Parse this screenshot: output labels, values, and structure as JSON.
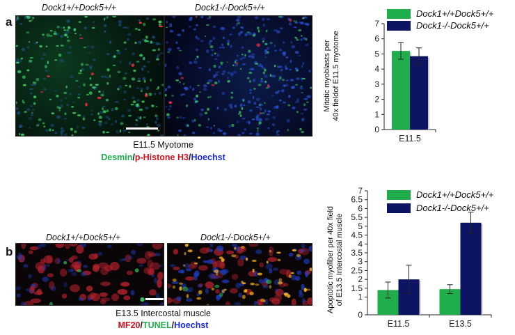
{
  "colors": {
    "green": "#1fae4b",
    "navy": "#0c1463",
    "desmin": "#1fae4b",
    "red": "#d0101c",
    "blue": "#1a2bd6"
  },
  "panel_a": {
    "letter": "a",
    "genotype_left": "Dock1+/+Dock5+/+",
    "genotype_right": "Dock1-/-Dock5+/+",
    "caption": "E11.5 Myotome",
    "stain": {
      "part1": "Desmin",
      "sep1": "/",
      "part2": "p-Histone H3",
      "sep2": "/",
      "part3": "Hoechst"
    }
  },
  "panel_b": {
    "letter": "b",
    "genotype_left": "Dock1+/+Dock5+/+",
    "genotype_right": "Dock1-/-Dock5+/+",
    "caption": "E13.5 Intercostal muscle",
    "stain": {
      "part1": "MF20",
      "sep1": "/",
      "part2": "TUNEL",
      "sep2": "/",
      "part3": "Hoechst"
    }
  },
  "chart_data": [
    {
      "type": "bar",
      "ylabel_line1": "Mitotic myoblasts per",
      "ylabel_line2": "40x fieldof E11.5 myotome",
      "categories": [
        "E11.5"
      ],
      "series": [
        {
          "name": "Dock1+/+Dock5+/+",
          "values": [
            5.2
          ],
          "errors": [
            0.55
          ],
          "color": "#1fae4b"
        },
        {
          "name": "Dock1-/-Dock5+/+",
          "values": [
            4.85
          ],
          "errors": [
            0.55
          ],
          "color": "#0c1463"
        }
      ],
      "ylim": [
        0,
        7
      ],
      "yticks": [
        "0",
        "1",
        "2",
        "3",
        "4",
        "5",
        "6",
        "7"
      ],
      "legend_position": "top"
    },
    {
      "type": "bar",
      "ylabel_line1": "Apoptotic myofiber per 40x field",
      "ylabel_line2": "of E13.5 Intercostal muscle",
      "categories": [
        "E11.5",
        "E13.5"
      ],
      "series": [
        {
          "name": "Dock1+/+Dock5+/+",
          "values": [
            1.4,
            1.45
          ],
          "errors": [
            0.45,
            0.25
          ],
          "color": "#1fae4b"
        },
        {
          "name": "Dock1-/-Dock5+/+",
          "values": [
            2.0,
            5.2
          ],
          "errors": [
            0.8,
            0.6
          ],
          "color": "#0c1463"
        }
      ],
      "ylim": [
        0,
        7
      ],
      "yticks": [
        "0",
        "1",
        "1.5",
        "2",
        "2.5",
        "3",
        "3.5",
        "4",
        "4.5",
        "5",
        "5.5",
        "6",
        "6.5",
        "7"
      ],
      "legend_position": "top"
    }
  ]
}
